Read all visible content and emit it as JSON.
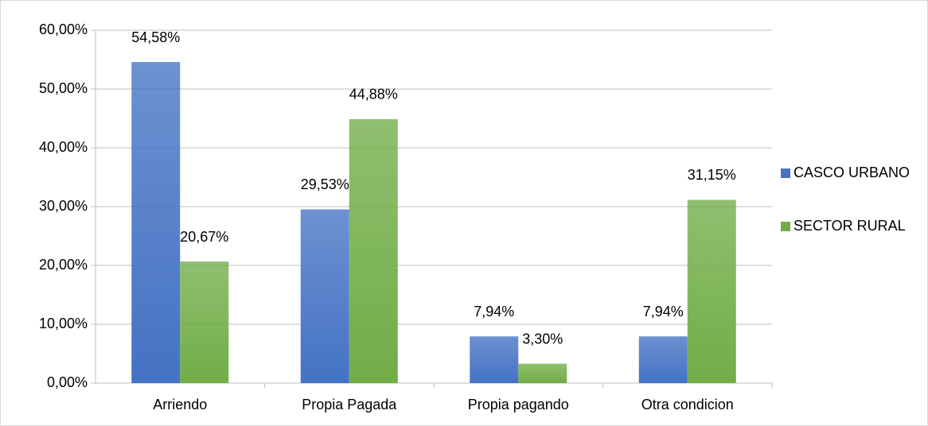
{
  "chart_data": {
    "type": "bar",
    "categories": [
      "Arriendo",
      "Propia Pagada",
      "Propia pagando",
      "Otra condicion"
    ],
    "series": [
      {
        "name": "CASCO URBANO",
        "color": "#4472c4",
        "values": [
          54.58,
          29.53,
          7.94,
          7.94
        ],
        "value_labels": [
          "54,58%",
          "29,53%",
          "7,94%",
          "7,94%"
        ]
      },
      {
        "name": "SECTOR RURAL",
        "color": "#70ad47",
        "values": [
          20.67,
          44.88,
          3.3,
          31.15
        ],
        "value_labels": [
          "20,67%",
          "44,88%",
          "3,30%",
          "31,15%"
        ]
      }
    ],
    "ylim": [
      0,
      60
    ],
    "yticks": [
      {
        "value": 0,
        "label": "0,00%"
      },
      {
        "value": 10,
        "label": "10,00%"
      },
      {
        "value": 20,
        "label": "20,00%"
      },
      {
        "value": 30,
        "label": "30,00%"
      },
      {
        "value": 40,
        "label": "40,00%"
      },
      {
        "value": 50,
        "label": "50,00%"
      },
      {
        "value": 60,
        "label": "60,00%"
      }
    ],
    "grid": true,
    "legend": "right"
  }
}
